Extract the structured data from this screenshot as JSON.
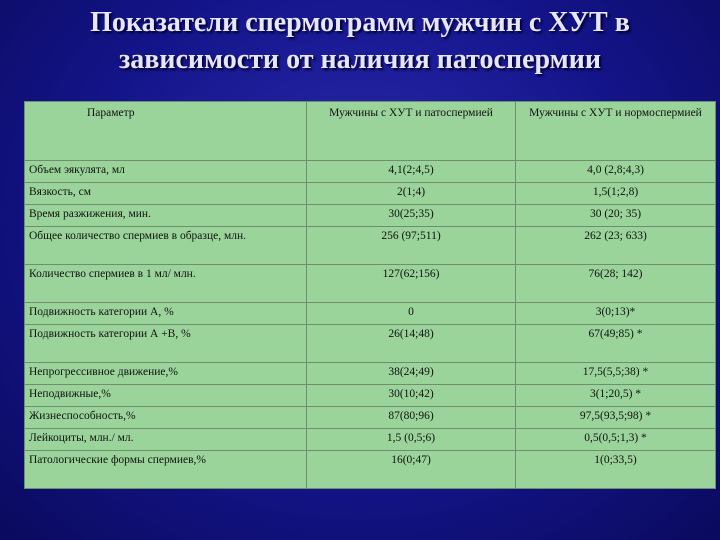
{
  "title": {
    "line1": "Показатели спермограмм мужчин с ХУТ в",
    "line2": "зависимости от наличия патоспермии"
  },
  "table": {
    "headers": [
      "Параметр",
      "Мужчины с ХУТ и патоспермией",
      "Мужчины с ХУТ и нормоспермией"
    ],
    "rows": [
      [
        "Объем эякулята, мл",
        "4,1(2;4,5)",
        "4,0 (2,8;4,3)"
      ],
      [
        "Вязкость, см",
        "2(1;4)",
        "1,5(1;2,8)"
      ],
      [
        "Время разжижения, мин.",
        "30(25;35)",
        "30 (20; 35)"
      ],
      [
        "Общее количество спермиев в образце, млн.",
        "256 (97;511)",
        "262 (23; 633)"
      ],
      [
        "Количество спермиев в 1 мл/ млн.",
        "127(62;156)",
        "76(28; 142)"
      ],
      [
        "Подвижность категории А, %",
        "0",
        "3(0;13)*"
      ],
      [
        "Подвижность категории А +В, %",
        "26(14;48)",
        "67(49;85) *"
      ],
      [
        "Непрогрессивное движение,%",
        "38(24;49)",
        "17,5(5,5;38) *"
      ],
      [
        "Неподвижные,%",
        "30(10;42)",
        "3(1;20,5) *"
      ],
      [
        "Жизнеспособность,%",
        "87(80;96)",
        "97,5(93,5;98) *"
      ],
      [
        "Лейкоциты, млн./ мл.",
        "1,5 (0,5;6)",
        "0,5(0,5;1,3) *"
      ],
      [
        "Патологические формы спермиев,%",
        "16(0;47)",
        "1(0;33,5)"
      ]
    ]
  }
}
